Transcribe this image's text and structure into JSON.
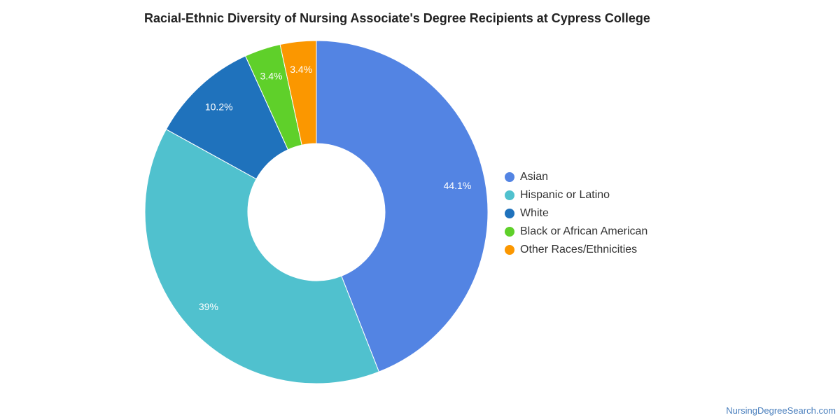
{
  "chart_data": {
    "type": "pie",
    "title": "Racial-Ethnic Diversity of Nursing Associate's Degree Recipients at Cypress College",
    "categories": [
      "Asian",
      "Hispanic or Latino",
      "White",
      "Black or African American",
      "Other Races/Ethnicities"
    ],
    "values": [
      44.1,
      39,
      10.2,
      3.4,
      3.4
    ],
    "data_labels": [
      "44.1%",
      "39%",
      "10.2%",
      "3.4%",
      "3.4%"
    ],
    "colors": [
      "#5384e3",
      "#50c1ce",
      "#1f72bc",
      "#5fd02a",
      "#fb9700"
    ],
    "donut": true,
    "legend_position": "right"
  },
  "source": "NursingDegreeSearch.com"
}
